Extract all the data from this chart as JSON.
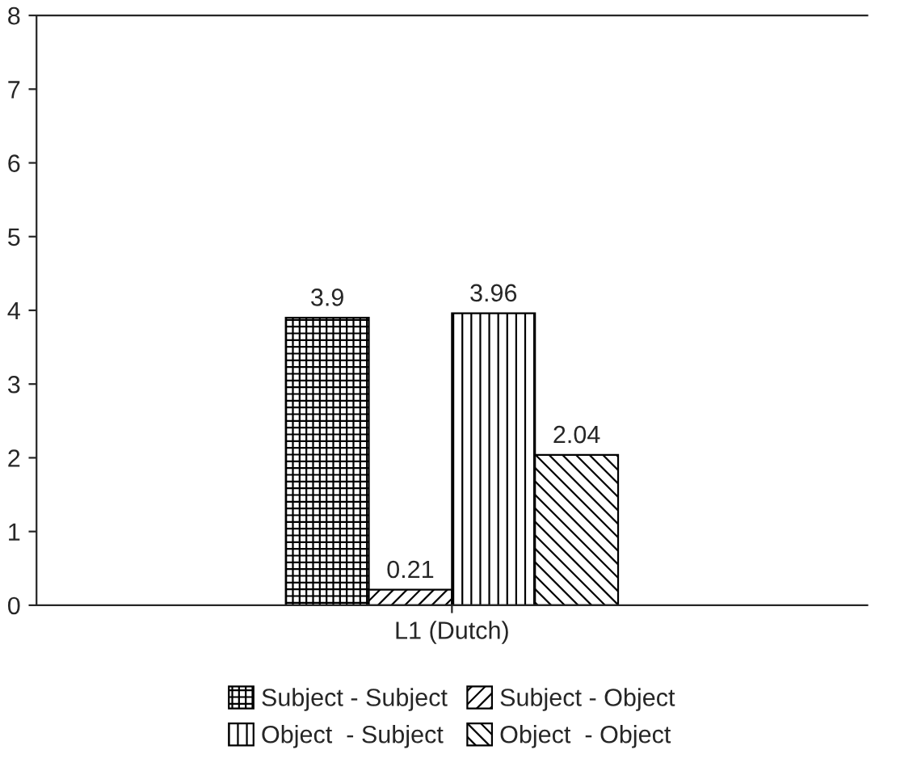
{
  "chart_data": {
    "type": "bar",
    "categories": [
      "L1 (Dutch)"
    ],
    "series": [
      {
        "name": "Subject - Subject",
        "color": "#000000",
        "values": [
          3.9
        ]
      },
      {
        "name": "Subject - Object",
        "color": "#000000",
        "values": [
          0.21
        ]
      },
      {
        "name": "Object  - Subject",
        "color": "#000000",
        "values": [
          3.96
        ]
      },
      {
        "name": "Object  - Object",
        "color": "#000000",
        "values": [
          2.04
        ]
      }
    ],
    "ylim": [
      0,
      8
    ],
    "yticks": [
      0,
      1,
      2,
      3,
      4,
      5,
      6,
      7,
      8
    ],
    "data_labels": true,
    "grid": false,
    "legend": "bottom"
  }
}
